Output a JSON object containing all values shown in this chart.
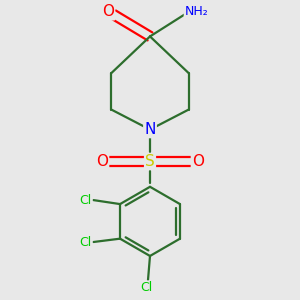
{
  "background_color": "#e8e8e8",
  "bond_color": "#2d6e2d",
  "bond_width": 1.6,
  "atom_colors": {
    "O": "#ff0000",
    "N": "#0000ff",
    "S": "#cccc00",
    "Cl": "#00cc00",
    "C": "#2d6e2d",
    "H": "#808080"
  },
  "figsize": [
    3.0,
    3.0
  ],
  "dpi": 100,
  "xlim": [
    -1.8,
    1.8
  ],
  "ylim": [
    -2.2,
    2.2
  ]
}
